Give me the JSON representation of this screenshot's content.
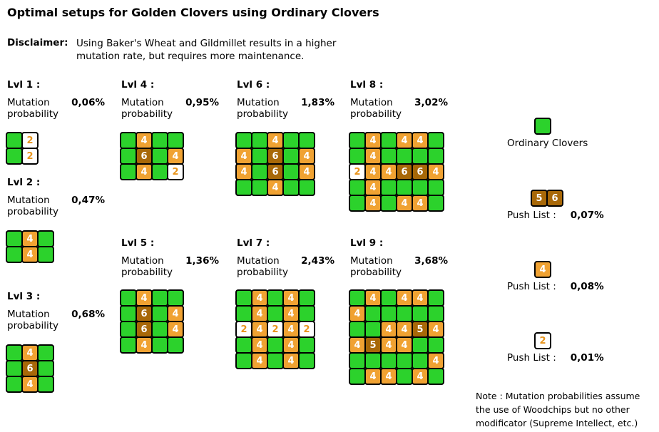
{
  "title": "Optimal setups for Golden Clovers using Ordinary Clovers",
  "disclaimer": {
    "label": "Disclaimer:",
    "line1": "Using Baker's Wheat and Gildmillet results in a higher",
    "line2": "mutation rate, but requires more maintenance."
  },
  "mutation_label": {
    "line1": "Mutation",
    "line2": "probability"
  },
  "levels": [
    {
      "id": 1,
      "label": "Lvl 1 :",
      "probability": "0,06%",
      "grid": [
        [
          "g",
          "2"
        ],
        [
          "g",
          "2"
        ]
      ]
    },
    {
      "id": 2,
      "label": "Lvl 2 :",
      "probability": "0,47%",
      "grid": [
        [
          "g",
          "4",
          "g"
        ],
        [
          "g",
          "4",
          "g"
        ]
      ]
    },
    {
      "id": 3,
      "label": "Lvl 3 :",
      "probability": "0,68%",
      "grid": [
        [
          "g",
          "4",
          "g"
        ],
        [
          "g",
          "6",
          "g"
        ],
        [
          "g",
          "4",
          "g"
        ]
      ]
    },
    {
      "id": 4,
      "label": "Lvl 4 :",
      "probability": "0,95%",
      "grid": [
        [
          "g",
          "4",
          "g",
          "g"
        ],
        [
          "g",
          "6",
          "g",
          "4"
        ],
        [
          "g",
          "4",
          "g",
          "2"
        ]
      ]
    },
    {
      "id": 5,
      "label": "Lvl 5 :",
      "probability": "1,36%",
      "grid": [
        [
          "g",
          "4",
          "g",
          "g"
        ],
        [
          "g",
          "6",
          "g",
          "4"
        ],
        [
          "g",
          "6",
          "g",
          "4"
        ],
        [
          "g",
          "4",
          "g",
          "g"
        ]
      ]
    },
    {
      "id": 6,
      "label": "Lvl 6 :",
      "probability": "1,83%",
      "grid": [
        [
          "g",
          "g",
          "4",
          "g",
          "g"
        ],
        [
          "4",
          "g",
          "6",
          "g",
          "4"
        ],
        [
          "4",
          "g",
          "6",
          "g",
          "4"
        ],
        [
          "g",
          "g",
          "4",
          "g",
          "g"
        ]
      ]
    },
    {
      "id": 7,
      "label": "Lvl 7 :",
      "probability": "2,43%",
      "grid": [
        [
          "g",
          "4",
          "g",
          "4",
          "g"
        ],
        [
          "g",
          "4",
          "g",
          "4",
          "g"
        ],
        [
          "2",
          "4",
          "2",
          "4",
          "2"
        ],
        [
          "g",
          "4",
          "g",
          "4",
          "g"
        ],
        [
          "g",
          "4",
          "g",
          "4",
          "g"
        ]
      ]
    },
    {
      "id": 8,
      "label": "Lvl 8 :",
      "probability": "3,02%",
      "grid": [
        [
          "g",
          "4",
          "g",
          "4",
          "4",
          "g"
        ],
        [
          "g",
          "4",
          "g",
          "g",
          "g",
          "g"
        ],
        [
          "2",
          "4",
          "4",
          "6",
          "6",
          "4"
        ],
        [
          "g",
          "4",
          "g",
          "g",
          "g",
          "g"
        ],
        [
          "g",
          "4",
          "g",
          "4",
          "4",
          "g"
        ]
      ]
    },
    {
      "id": 9,
      "label": "Lvl 9 :",
      "probability": "3,68%",
      "grid": [
        [
          "g",
          "4",
          "g",
          "4",
          "4",
          "g"
        ],
        [
          "4",
          "g",
          "g",
          "g",
          "g",
          "g"
        ],
        [
          "g",
          "g",
          "4",
          "4",
          "5",
          "4"
        ],
        [
          "4",
          "5",
          "4",
          "4",
          "g",
          "g"
        ],
        [
          "g",
          "g",
          "g",
          "g",
          "g",
          "4"
        ],
        [
          "g",
          "4",
          "4",
          "g",
          "4",
          "g"
        ]
      ]
    }
  ],
  "legend": {
    "ordinary": {
      "label": "Ordinary Clovers",
      "cells": [
        [
          "g"
        ]
      ]
    },
    "push56": {
      "label": "Push List :",
      "value": "0,07%",
      "cells": [
        [
          "5",
          "6"
        ]
      ]
    },
    "push4": {
      "label": "Push List :",
      "value": "0,08%",
      "cells": [
        [
          "4"
        ]
      ]
    },
    "push2": {
      "label": "Push List :",
      "value": "0,01%",
      "cells": [
        [
          "2"
        ]
      ]
    }
  },
  "note": {
    "line1": "Note : Mutation probabilities assume",
    "line2": "the use of Woodchips but no other",
    "line3": "modificator (Supreme Intellect, etc.)"
  },
  "colors": {
    "ordinary_clover_green": "#2cd22c",
    "push_list_4_orange": "#f0a232",
    "push_list_5_6_brown": "#a86808",
    "push_list_2_background": "#ffffff",
    "push_list_2_text": "#e8941c",
    "cell_border": "#000000",
    "cell_digit": "#ffffff"
  }
}
